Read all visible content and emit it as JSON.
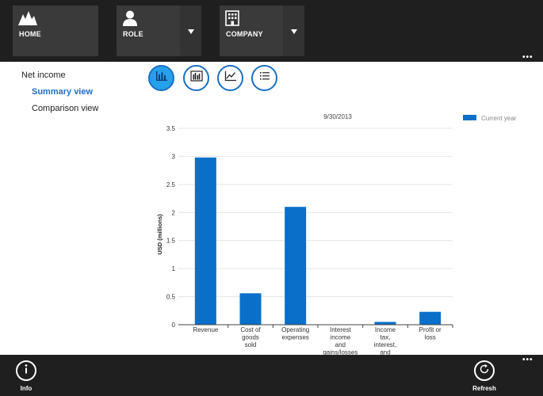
{
  "topbar": {
    "home_label": "HOME",
    "role_label": "ROLE",
    "company_label": "COMPANY",
    "more_label": "•••"
  },
  "nav": {
    "items": [
      {
        "label": "Net income",
        "active": false
      },
      {
        "label": "Summary view",
        "active": true
      },
      {
        "label": "Comparison view",
        "active": false
      }
    ]
  },
  "view_buttons": [
    {
      "icon": "bar-chart-icon",
      "selected": true
    },
    {
      "icon": "grouped-bar-chart-icon",
      "selected": false
    },
    {
      "icon": "line-chart-icon",
      "selected": false
    },
    {
      "icon": "list-icon",
      "selected": false
    }
  ],
  "chart_data": {
    "type": "bar",
    "title": "9/30/2013",
    "ylabel": "USD (millions)",
    "xlabel": "",
    "ylim": [
      0,
      3.5
    ],
    "yticks": [
      "0",
      "0.5",
      "1",
      "1.5",
      "2",
      "2.5",
      "3",
      "3.5"
    ],
    "ytick_values": [
      0,
      0.5,
      1,
      1.5,
      2,
      2.5,
      3,
      3.5
    ],
    "categories": [
      [
        "Revenue"
      ],
      [
        "Cost of",
        "goods",
        "sold"
      ],
      [
        "Operating",
        "expenses"
      ],
      [
        "Interest",
        "income",
        "and",
        "gains/losses"
      ],
      [
        "Income",
        "tax,",
        "interest,",
        "and"
      ],
      [
        "Profit or",
        "loss"
      ]
    ],
    "series": [
      {
        "name": "Current year",
        "values": [
          2.98,
          0.56,
          2.1,
          0.0,
          0.05,
          0.23
        ]
      }
    ],
    "legend_position": "top-right",
    "grid": true,
    "colors": {
      "bar": "#0a6fc9",
      "grid": "#e4e4e4",
      "axis": "#555555"
    }
  },
  "bottombar": {
    "info_label": "Info",
    "refresh_label": "Refresh",
    "more_label": "•••"
  }
}
